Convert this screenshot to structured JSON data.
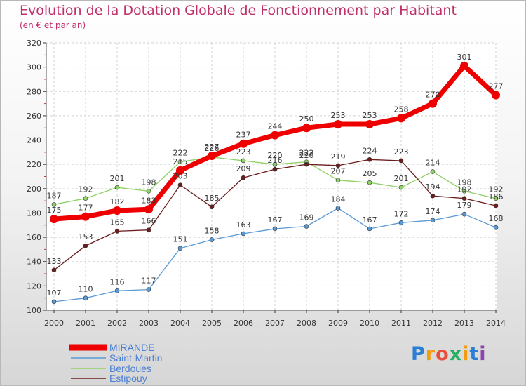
{
  "title": "Evolution de la Dotation Globale de Fonctionnement par Habitant",
  "subtitle": "(en € et par an)",
  "logo": {
    "text": "Proxiti"
  },
  "chart_data": {
    "type": "line",
    "title": "Evolution de la Dotation Globale de Fonctionnement par Habitant",
    "subtitle": "(en € et par an)",
    "xlabel": "",
    "ylabel": "",
    "x": [
      "2000",
      "2001",
      "2002",
      "2003",
      "2004",
      "2005",
      "2006",
      "2007",
      "2008",
      "2009",
      "2010",
      "2011",
      "2012",
      "2013",
      "2014"
    ],
    "ylim": [
      100,
      320
    ],
    "yticks": [
      100,
      120,
      140,
      160,
      180,
      200,
      220,
      240,
      260,
      280,
      300,
      320
    ],
    "grid": true,
    "legend_position": "bottom-left",
    "series": [
      {
        "name": "MIRANDE",
        "color": "#ee0000",
        "values": [
          175,
          177,
          182,
          183,
          215,
          227,
          237,
          244,
          250,
          253,
          253,
          258,
          270,
          301,
          277
        ]
      },
      {
        "name": "Saint-Martin",
        "color": "#5b9bd5",
        "values": [
          107,
          110,
          116,
          117,
          151,
          158,
          163,
          167,
          169,
          184,
          167,
          172,
          174,
          179,
          168
        ]
      },
      {
        "name": "Berdoues",
        "color": "#8fd166",
        "values": [
          187,
          192,
          201,
          198,
          222,
          226,
          223,
          220,
          222,
          207,
          205,
          201,
          214,
          198,
          192
        ]
      },
      {
        "name": "Estipouy",
        "color": "#6b1c1c",
        "values": [
          133,
          153,
          165,
          166,
          203,
          185,
          209,
          216,
          220,
          219,
          224,
          223,
          194,
          192,
          186
        ]
      }
    ]
  }
}
